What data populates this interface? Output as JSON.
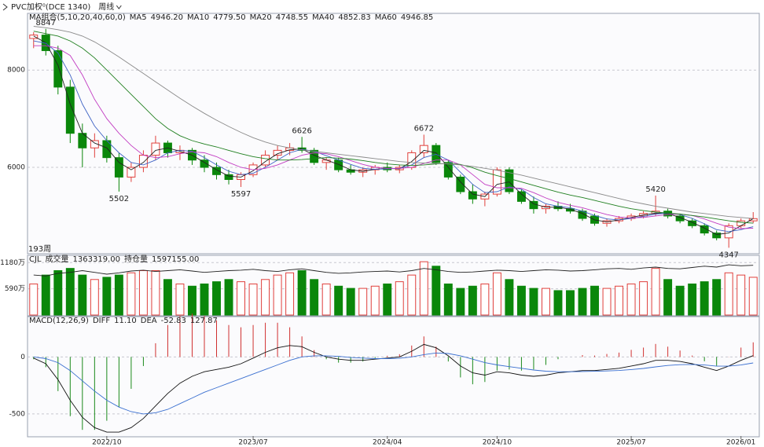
{
  "header": {
    "symbol": "PVC加权⁰(DCE 1340)",
    "period": "周线"
  },
  "chart_data": [
    {
      "type": "candlestick",
      "legend_title": "MA组合(5,10,20,40,60,0)",
      "bar_count": "193周",
      "up_color": "#e0403c",
      "down_color": "#0a870a",
      "open": [
        8650,
        8720,
        8400,
        7650,
        6700,
        6400,
        6550,
        6200,
        5800,
        6000,
        6250,
        6500,
        6300,
        6350,
        6150,
        6000,
        5850,
        5750,
        5850,
        6050,
        6250,
        6350,
        6400,
        6350,
        6100,
        6150,
        5950,
        5900,
        5950,
        6000,
        5950,
        6000,
        6300,
        6450,
        6100,
        5800,
        5500,
        5350,
        5450,
        5950,
        5500,
        5300,
        5150,
        5200,
        5150,
        5100,
        5000,
        4850,
        4900,
        4950,
        5000,
        5050,
        5100,
        5000,
        4900,
        4800,
        4650,
        4550,
        4800,
        4900
      ],
      "high": [
        8780,
        8847,
        8500,
        7800,
        6900,
        6700,
        6650,
        6300,
        6100,
        6350,
        6650,
        6550,
        6450,
        6400,
        6250,
        6100,
        5950,
        5900,
        6100,
        6350,
        6450,
        6500,
        6626,
        6400,
        6200,
        6200,
        6050,
        6000,
        6050,
        6100,
        6050,
        6350,
        6672,
        6500,
        6150,
        5850,
        5650,
        5500,
        6000,
        6000,
        5550,
        5400,
        5250,
        5300,
        5250,
        5150,
        5050,
        4950,
        5000,
        5050,
        5100,
        5420,
        5150,
        5050,
        4950,
        4850,
        4700,
        4850,
        4950,
        5080
      ],
      "low": [
        8450,
        8300,
        7500,
        6500,
        6000,
        6200,
        6100,
        5502,
        5700,
        5900,
        6150,
        6200,
        6150,
        6050,
        5900,
        5750,
        5650,
        5597,
        5800,
        6000,
        6150,
        6250,
        6300,
        6050,
        5950,
        5900,
        5850,
        5800,
        5850,
        5900,
        5880,
        5950,
        6200,
        6050,
        5750,
        5450,
        5250,
        5200,
        5400,
        5450,
        5250,
        5050,
        5050,
        5100,
        5050,
        4900,
        4800,
        4780,
        4850,
        4900,
        4950,
        5000,
        4950,
        4850,
        4750,
        4600,
        4500,
        4347,
        4750,
        4850
      ],
      "close": [
        8720,
        8400,
        7650,
        6700,
        6400,
        6550,
        6200,
        5800,
        6000,
        6250,
        6500,
        6300,
        6350,
        6150,
        6000,
        5850,
        5750,
        5850,
        6050,
        6250,
        6350,
        6400,
        6350,
        6100,
        6150,
        5950,
        5900,
        5950,
        6000,
        5950,
        6000,
        6300,
        6450,
        6100,
        5800,
        5500,
        5350,
        5450,
        5950,
        5500,
        5300,
        5150,
        5200,
        5150,
        5100,
        4950,
        4850,
        4900,
        4950,
        5000,
        5050,
        5100,
        5000,
        4900,
        4800,
        4650,
        4550,
        4800,
        4900,
        4946
      ],
      "series": [
        {
          "name": "MA5",
          "label": "4946.20",
          "color": "#222222",
          "values": [
            8700,
            8560,
            8100,
            7300,
            6700,
            6500,
            6400,
            6100,
            5950,
            6100,
            6350,
            6400,
            6330,
            6250,
            6100,
            5950,
            5820,
            5800,
            5930,
            6120,
            6280,
            6360,
            6380,
            6250,
            6150,
            6060,
            5950,
            5920,
            5960,
            5980,
            5970,
            6120,
            6350,
            6300,
            6000,
            5700,
            5450,
            5400,
            5650,
            5700,
            5450,
            5250,
            5180,
            5180,
            5140,
            5050,
            4920,
            4880,
            4920,
            4970,
            5020,
            5060,
            5050,
            4970,
            4870,
            4750,
            4620,
            4650,
            4800,
            4946.2
          ]
        },
        {
          "name": "MA10",
          "label": "4779.50",
          "color": "#3f63c4",
          "values": [
            8600,
            8550,
            8350,
            7900,
            7300,
            6850,
            6550,
            6300,
            6100,
            6050,
            6150,
            6300,
            6350,
            6330,
            6200,
            6050,
            5920,
            5850,
            5880,
            6000,
            6150,
            6300,
            6370,
            6330,
            6240,
            6150,
            6060,
            5980,
            5960,
            5970,
            5980,
            6050,
            6200,
            6270,
            6150,
            5900,
            5650,
            5480,
            5500,
            5600,
            5550,
            5380,
            5250,
            5200,
            5170,
            5100,
            5010,
            4940,
            4920,
            4950,
            4990,
            5040,
            5060,
            5030,
            4950,
            4840,
            4720,
            4680,
            4720,
            4779.5
          ]
        },
        {
          "name": "MA20",
          "label": "4748.55",
          "color": "#c23cc2",
          "values": [
            8500,
            8500,
            8450,
            8300,
            7900,
            7400,
            7000,
            6700,
            6450,
            6250,
            6200,
            6220,
            6280,
            6320,
            6300,
            6220,
            6100,
            6000,
            5950,
            5980,
            6050,
            6150,
            6250,
            6300,
            6280,
            6220,
            6140,
            6060,
            6000,
            5980,
            5980,
            6000,
            6080,
            6150,
            6150,
            6050,
            5850,
            5650,
            5580,
            5580,
            5570,
            5480,
            5370,
            5280,
            5220,
            5170,
            5100,
            5030,
            4980,
            4960,
            4970,
            5000,
            5030,
            5040,
            5010,
            4940,
            4850,
            4770,
            4740,
            4748.55
          ]
        },
        {
          "name": "MA40",
          "label": "4852.83",
          "color": "#1f7f1f",
          "values": [
            8800,
            8750,
            8700,
            8600,
            8450,
            8250,
            8000,
            7750,
            7500,
            7250,
            7000,
            6800,
            6650,
            6550,
            6480,
            6420,
            6350,
            6280,
            6220,
            6180,
            6150,
            6150,
            6160,
            6180,
            6200,
            6190,
            6170,
            6140,
            6100,
            6070,
            6050,
            6040,
            6050,
            6070,
            6080,
            6060,
            5990,
            5900,
            5830,
            5770,
            5700,
            5630,
            5560,
            5490,
            5430,
            5380,
            5320,
            5260,
            5200,
            5150,
            5110,
            5080,
            5060,
            5040,
            5010,
            4980,
            4940,
            4900,
            4870,
            4852.83
          ]
        },
        {
          "name": "MA60",
          "label": "4946.85",
          "color": "#8a8a8a",
          "values": [
            8900,
            8870,
            8830,
            8780,
            8700,
            8580,
            8430,
            8270,
            8100,
            7930,
            7760,
            7590,
            7420,
            7260,
            7110,
            6970,
            6840,
            6720,
            6610,
            6520,
            6450,
            6400,
            6360,
            6330,
            6300,
            6270,
            6240,
            6210,
            6180,
            6150,
            6120,
            6100,
            6090,
            6080,
            6070,
            6050,
            6020,
            5980,
            5940,
            5890,
            5840,
            5780,
            5720,
            5660,
            5600,
            5540,
            5480,
            5420,
            5360,
            5300,
            5250,
            5200,
            5160,
            5120,
            5080,
            5050,
            5020,
            4990,
            4970,
            4946.85
          ]
        }
      ],
      "annotations": [
        {
          "index": 1,
          "value": 8847,
          "color": "#c02020"
        },
        {
          "index": 7,
          "value": 5502,
          "color": "#207020"
        },
        {
          "index": 17,
          "value": 5597,
          "color": "#207020"
        },
        {
          "index": 22,
          "value": 6626,
          "color": "#c02020"
        },
        {
          "index": 32,
          "value": 6672,
          "color": "#c02020"
        },
        {
          "index": 51,
          "value": 5420,
          "color": "#c02020"
        },
        {
          "index": 57,
          "value": 4347,
          "color": "#207020"
        }
      ],
      "ylim": [
        4240,
        9150
      ],
      "yticks": [
        6000,
        8000
      ],
      "grid": true
    },
    {
      "type": "volume",
      "title": "CJL",
      "ylim": [
        0,
        1327
      ],
      "yticks": [
        {
          "value": 590,
          "label": "590万"
        },
        {
          "value": 1180,
          "label": "1180万"
        }
      ],
      "grid": true,
      "series": [
        {
          "name": "成交量",
          "label": "1363319.00",
          "values": [
            700,
            900,
            1000,
            1050,
            900,
            800,
            850,
            900,
            950,
            1000,
            1000,
            800,
            700,
            650,
            700,
            750,
            800,
            750,
            700,
            800,
            900,
            950,
            1000,
            800,
            700,
            650,
            600,
            600,
            650,
            700,
            750,
            900,
            1200,
            1100,
            700,
            600,
            650,
            700,
            950,
            800,
            650,
            600,
            600,
            550,
            550,
            600,
            650,
            600,
            650,
            700,
            750,
            1050,
            800,
            650,
            700,
            750,
            800,
            950,
            900,
            850
          ]
        },
        {
          "name": "持仓量",
          "label": "1597155.00",
          "color": "#222222",
          "values": [
            900,
            880,
            940,
            960,
            1000,
            960,
            920,
            950,
            990,
            1010,
            980,
            1000,
            1020,
            990,
            960,
            980,
            1000,
            1010,
            1030,
            1000,
            980,
            1020,
            1040,
            1000,
            960,
            940,
            950,
            970,
            980,
            990,
            970,
            1000,
            1050,
            1020,
            980,
            960,
            970,
            990,
            1010,
            1000,
            980,
            1000,
            1020,
            1010,
            990,
            1000,
            1020,
            1040,
            1050,
            1030,
            1060,
            1080,
            1050,
            1040,
            1070,
            1100,
            1080,
            1130,
            1110,
            1120
          ]
        }
      ]
    },
    {
      "type": "macd",
      "title": "MACD(12,26,9)",
      "ylim": [
        -694,
        347
      ],
      "yticks": [
        -500,
        0
      ],
      "grid": true,
      "categories": [
        null,
        null,
        null,
        null,
        null,
        null,
        "2022/10",
        null,
        null,
        null,
        null,
        null,
        null,
        null,
        null,
        null,
        null,
        null,
        "2023/07",
        null,
        null,
        null,
        null,
        null,
        null,
        null,
        null,
        null,
        null,
        "2024/04",
        null,
        null,
        null,
        null,
        null,
        null,
        null,
        null,
        "2024/10",
        null,
        null,
        null,
        null,
        null,
        null,
        null,
        null,
        null,
        null,
        "2025/07",
        null,
        null,
        null,
        null,
        null,
        null,
        null,
        null,
        "2026/01",
        null
      ],
      "series": [
        {
          "name": "DIFF",
          "label": "11.10",
          "color": "#111111",
          "values": [
            -10,
            -60,
            -200,
            -380,
            -530,
            -620,
            -660,
            -660,
            -620,
            -540,
            -430,
            -320,
            -230,
            -170,
            -130,
            -110,
            -90,
            -60,
            -10,
            40,
            80,
            100,
            90,
            40,
            0,
            -20,
            -30,
            -30,
            -20,
            -10,
            0,
            50,
            110,
            80,
            10,
            -80,
            -140,
            -160,
            -130,
            -140,
            -160,
            -170,
            -160,
            -140,
            -130,
            -120,
            -120,
            -110,
            -100,
            -80,
            -60,
            -30,
            -30,
            -40,
            -60,
            -90,
            -120,
            -80,
            -30,
            11.1
          ]
        },
        {
          "name": "DEA",
          "label": "-52.83",
          "color": "#3a6fd0",
          "values": [
            0,
            -15,
            -50,
            -120,
            -210,
            -300,
            -380,
            -440,
            -480,
            -500,
            -490,
            -460,
            -410,
            -360,
            -310,
            -270,
            -230,
            -190,
            -150,
            -110,
            -70,
            -30,
            0,
            10,
            10,
            5,
            -5,
            -10,
            -15,
            -15,
            -12,
            0,
            20,
            35,
            30,
            10,
            -20,
            -50,
            -70,
            -85,
            -100,
            -115,
            -125,
            -130,
            -130,
            -128,
            -126,
            -123,
            -119,
            -111,
            -101,
            -87,
            -75,
            -68,
            -66,
            -71,
            -81,
            -81,
            -71,
            -52.83
          ]
        }
      ],
      "histogram": {
        "up_color": "#d03030",
        "down_color": "#1a8a1a",
        "values": [
          -20,
          -90,
          -300,
          -520,
          -640,
          -640,
          -560,
          -440,
          -280,
          -80,
          120,
          280,
          360,
          380,
          360,
          320,
          280,
          260,
          280,
          300,
          300,
          260,
          180,
          60,
          -20,
          -50,
          -50,
          -40,
          -10,
          10,
          24,
          100,
          180,
          90,
          -40,
          -180,
          -240,
          -220,
          -120,
          -110,
          -120,
          -110,
          -70,
          -20,
          0,
          16,
          12,
          26,
          38,
          62,
          82,
          114,
          90,
          56,
          12,
          -38,
          -78,
          2,
          82,
          127.87
        ]
      }
    }
  ]
}
